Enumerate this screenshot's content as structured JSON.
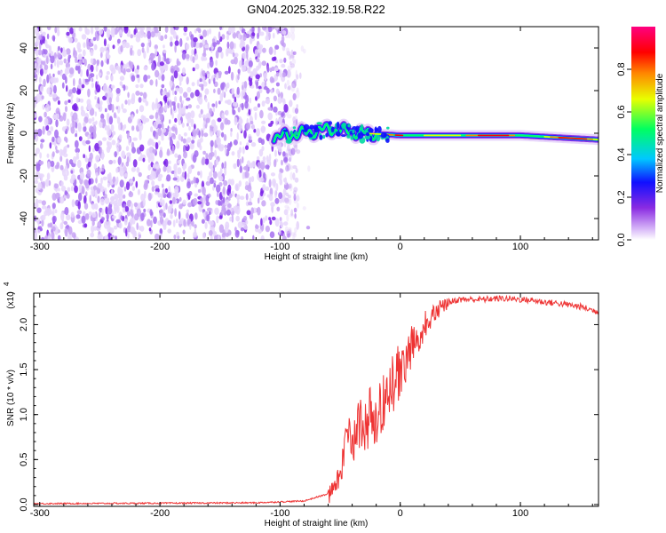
{
  "chart_data": [
    {
      "type": "heatmap",
      "title": "GN04.2025.332.19.58.R22",
      "xlabel": "Height of straight line (km)",
      "ylabel": "Frequency (Hz)",
      "xlim": [
        -305,
        165
      ],
      "ylim": [
        -50,
        50
      ],
      "xticks": [
        -300,
        -200,
        -100,
        0,
        100
      ],
      "yticks": [
        -40,
        -20,
        0,
        20,
        40
      ],
      "colorbar": {
        "label": "Normalized spectral amplitude",
        "range": [
          0.0,
          1.0
        ],
        "ticks": [
          0.0,
          0.2,
          0.4,
          0.6,
          0.8
        ],
        "colors": [
          "#ffffff",
          "#d8b8f8",
          "#8a2be2",
          "#1010ff",
          "#00c8ff",
          "#00ff60",
          "#e8ff00",
          "#ff8800",
          "#ff0000",
          "#ff0080"
        ]
      },
      "features": [
        {
          "name": "noise-region",
          "x_range": [
            -305,
            -85
          ],
          "freq_range": [
            -50,
            50
          ],
          "amplitude": "0.05-0.2"
        },
        {
          "name": "signal-line",
          "x_range": [
            -105,
            165
          ],
          "center_freq": [
            {
              "x": -105,
              "f": -2
            },
            {
              "x": -60,
              "f": 2
            },
            {
              "x": -30,
              "f": 0
            },
            {
              "x": 0,
              "f": -1
            },
            {
              "x": 50,
              "f": -1
            },
            {
              "x": 100,
              "f": -1
            },
            {
              "x": 165,
              "f": -3
            }
          ],
          "peak_amplitude": 1.0
        }
      ]
    },
    {
      "type": "line",
      "xlabel": "Height of straight line (km)",
      "ylabel": "SNR (10 * v/v)",
      "yscale_label": "(x10",
      "yscale_exp": "4",
      "xlim": [
        -305,
        165
      ],
      "ylim": [
        -0.02,
        2.35
      ],
      "xticks": [
        -300,
        -200,
        -100,
        0,
        100
      ],
      "yticks": [
        0.0,
        0.5,
        1.0,
        1.5,
        2.0
      ],
      "line_color": "#ee3333",
      "series": [
        {
          "name": "SNR",
          "x": [
            -305,
            -200,
            -120,
            -80,
            -60,
            -52,
            -48,
            -45,
            -42,
            -38,
            -35,
            -30,
            -25,
            -20,
            -15,
            -10,
            -5,
            0,
            5,
            10,
            20,
            30,
            40,
            50,
            60,
            70,
            80,
            90,
            100,
            110,
            120,
            130,
            140,
            150,
            165
          ],
          "values": [
            0.01,
            0.015,
            0.02,
            0.04,
            0.12,
            0.3,
            0.55,
            0.75,
            0.9,
            0.8,
            1.0,
            0.95,
            1.1,
            1.0,
            1.25,
            1.35,
            1.5,
            1.6,
            1.7,
            1.85,
            2.05,
            2.2,
            2.25,
            2.28,
            2.28,
            2.28,
            2.29,
            2.29,
            2.28,
            2.27,
            2.25,
            2.24,
            2.22,
            2.2,
            2.14
          ]
        }
      ]
    }
  ]
}
